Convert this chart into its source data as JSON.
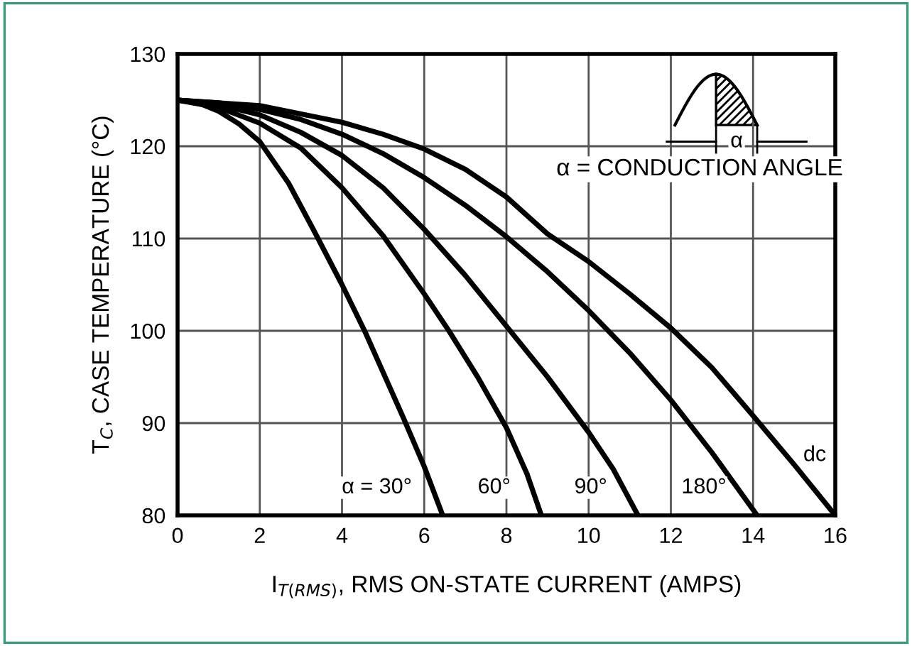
{
  "chart_data": {
    "type": "line",
    "xlabel": "I$_{T(RMS)}$, RMS ON-STATE CURRENT (AMPS)",
    "ylabel": "T$_{C}$, CASE TEMPERATURE (°C)",
    "xlim": [
      0,
      16
    ],
    "xticks": [
      0,
      2,
      4,
      6,
      8,
      10,
      12,
      14,
      16
    ],
    "ylim": [
      80,
      130
    ],
    "yticks": [
      80,
      90,
      100,
      110,
      120,
      130
    ],
    "grid": true,
    "line_style": "solid",
    "series": [
      {
        "name": "α = 30°",
        "color": "#000000",
        "x": [
          0,
          0.5,
          1,
          1.5,
          2,
          2.7,
          3.3,
          4.0,
          4.55,
          5.0,
          5.5,
          6.0,
          6.45
        ],
        "values": [
          125,
          124.7,
          123.8,
          122.4,
          120.5,
          116,
          111,
          105,
          100,
          95.5,
          90.5,
          85.3,
          80
        ]
      },
      {
        "name": "60°",
        "color": "#000000",
        "x": [
          0,
          1,
          2,
          3,
          4,
          5,
          6,
          6.6,
          7.3,
          8.0,
          8.5,
          8.85
        ],
        "values": [
          125,
          124.2,
          122.5,
          119.8,
          115.5,
          110.3,
          104,
          100,
          95,
          89.5,
          84.5,
          80
        ]
      },
      {
        "name": "90°",
        "color": "#000000",
        "x": [
          0,
          1,
          2,
          3,
          4,
          5,
          6,
          7,
          8,
          9,
          10,
          10.6,
          11.2
        ],
        "values": [
          125,
          124.5,
          123.4,
          121.5,
          119,
          115.5,
          111,
          106,
          100.5,
          95,
          89,
          85,
          80
        ]
      },
      {
        "name": "180°",
        "color": "#000000",
        "x": [
          0,
          1,
          2,
          3,
          4,
          5,
          6,
          7,
          8,
          9,
          10,
          11,
          12,
          13,
          14.1
        ],
        "values": [
          125,
          124.7,
          124,
          122.9,
          121.3,
          119.2,
          116.6,
          113.6,
          110.2,
          106.4,
          102.2,
          97.6,
          92.5,
          86.8,
          80
        ]
      },
      {
        "name": "dc",
        "color": "#000000",
        "x": [
          0,
          2,
          4,
          5,
          6,
          7,
          8,
          9,
          10,
          11,
          12,
          13,
          14,
          15,
          16
        ],
        "values": [
          125,
          124.4,
          122.6,
          121.3,
          119.7,
          117.5,
          114.5,
          110.5,
          107.5,
          104,
          100.3,
          96,
          90.8,
          85.5,
          80
        ]
      }
    ],
    "annotations": [
      "α",
      "α = CONDUCTION ANGLE"
    ]
  }
}
